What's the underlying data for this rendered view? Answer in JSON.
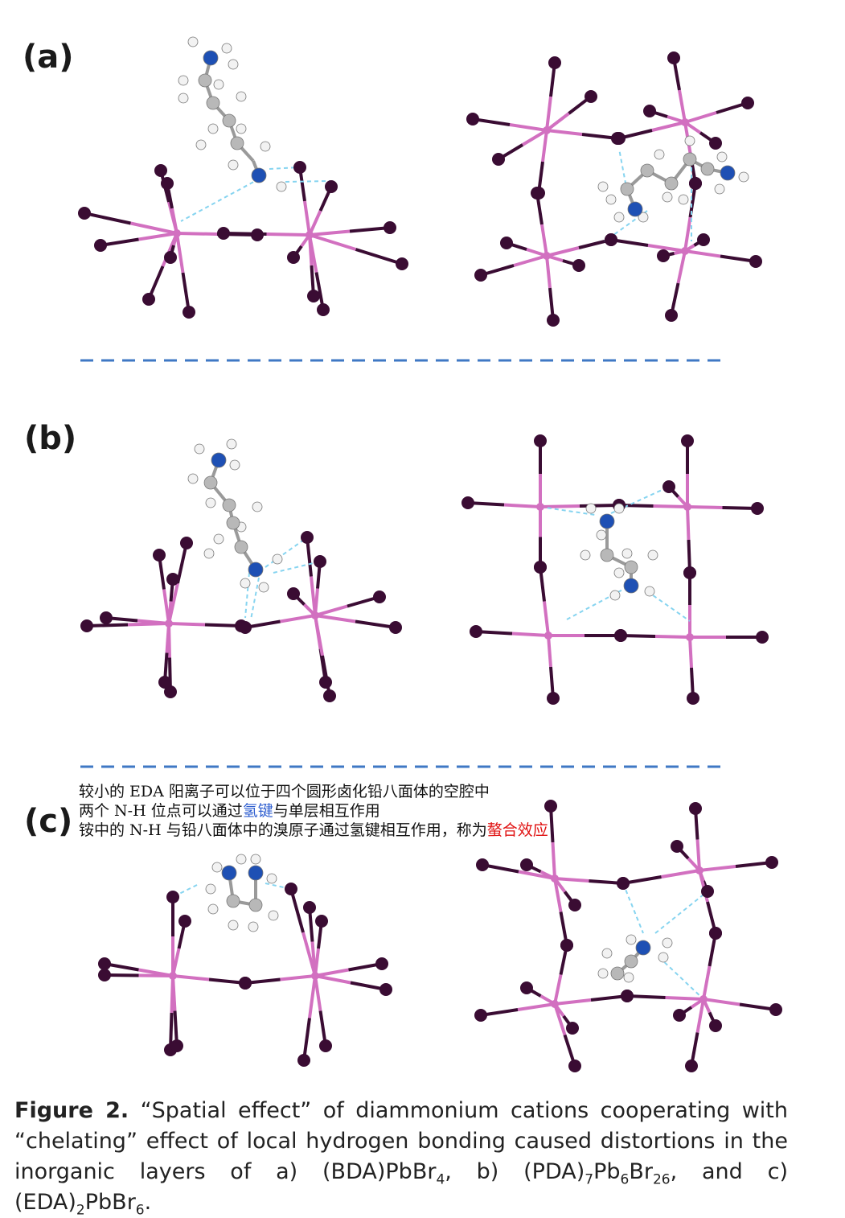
{
  "panels": [
    {
      "label": "(a)"
    },
    {
      "label": "(b)"
    },
    {
      "label": "(c)"
    }
  ],
  "annotation": {
    "line1": "较小的 EDA 阳离子可以位于四个圆形卤化铅八面体的空腔中",
    "line2_pre": "两个 N-H 位点可以通过",
    "line2_blue": "氢键",
    "line2_post": "与单层相互作用",
    "line3_pre": "铵中的 N-H 与铅八面体中的溴原子通过氢键相互作用，称为",
    "line3_red": "螯合效应"
  },
  "caption": {
    "figure_label": "Figure 2.",
    "text_main": " “Spatial effect” of diammonium cations cooperating with “chelating” effect of local hydrogen bonding caused distortions in the inorganic layers of a) (BDA)PbBr",
    "sub1": "4",
    "text_b": ", b) (PDA)",
    "sub2": "7",
    "text_b2": "Pb",
    "sub3": "6",
    "text_b3": "Br",
    "sub4": "26",
    "text_c": ", and c) (EDA)",
    "sub5": "2",
    "text_c2": "PbBr",
    "sub6": "6",
    "text_end": "."
  },
  "colors": {
    "pb": "#d270c0",
    "br": "#3a0c33",
    "n": "#1e50b4",
    "c": "#b8b8b8",
    "h": "#f2f2f2",
    "hbond": "#86d4f0",
    "divider": "#3f78c4"
  }
}
